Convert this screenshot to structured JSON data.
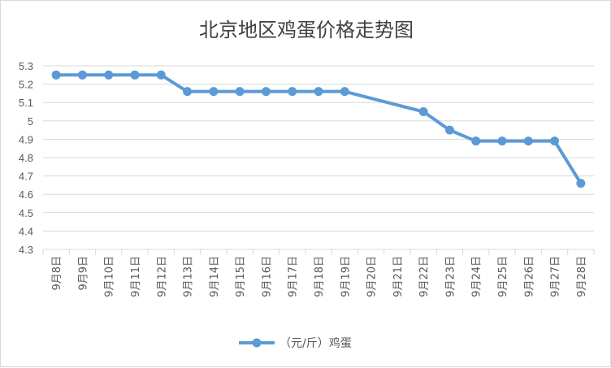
{
  "chart_data": {
    "type": "line",
    "title": "北京地区鸡蛋价格走势图",
    "categories": [
      "9月8日",
      "9月9日",
      "9月10日",
      "9月11日",
      "9月12日",
      "9月13日",
      "9月14日",
      "9月15日",
      "9月16日",
      "9月17日",
      "9月18日",
      "9月19日",
      "9月20日",
      "9月21日",
      "9月22日",
      "9月23日",
      "9月24日",
      "9月25日",
      "9月26日",
      "9月27日",
      "9月28日"
    ],
    "series": [
      {
        "name": "（元/斤）鸡蛋",
        "color": "#5b9bd5",
        "values": [
          5.25,
          5.25,
          5.25,
          5.25,
          5.25,
          5.16,
          5.16,
          5.16,
          5.16,
          5.16,
          5.16,
          5.16,
          null,
          null,
          5.05,
          4.95,
          4.89,
          4.89,
          4.89,
          4.89,
          4.66
        ]
      }
    ],
    "ylim": [
      4.3,
      5.3
    ],
    "yticks": [
      "4.3",
      "4.4",
      "4.5",
      "4.6",
      "4.7",
      "4.8",
      "4.9",
      "5",
      "5.1",
      "5.2",
      "5.3"
    ],
    "grid": true,
    "legend": "bottom"
  }
}
